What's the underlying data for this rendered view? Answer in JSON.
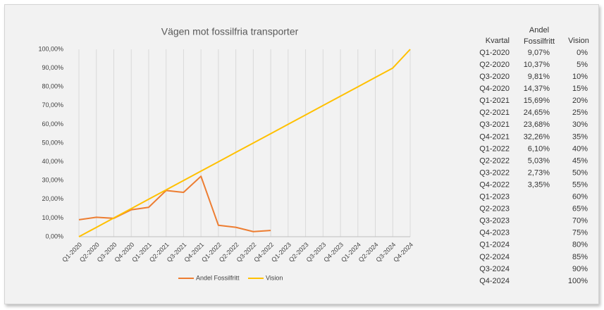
{
  "chart_data": {
    "type": "line",
    "title": "Vägen mot fossilfria transporter",
    "categories": [
      "Q1-2020",
      "Q2-2020",
      "Q3-2020",
      "Q4-2020",
      "Q1-2021",
      "Q2-2021",
      "Q3-2021",
      "Q4-2021",
      "Q1-2022",
      "Q2-2022",
      "Q3-2022",
      "Q4-2022",
      "Q1-2023",
      "Q2-2023",
      "Q3-2023",
      "Q4-2023",
      "Q1-2024",
      "Q2-2024",
      "Q3-2024",
      "Q4-2024"
    ],
    "series": [
      {
        "name": "Andel Fossilfritt",
        "color": "#ed7d31",
        "values": [
          9.07,
          10.37,
          9.81,
          14.37,
          15.69,
          24.65,
          23.68,
          32.26,
          6.1,
          5.03,
          2.73,
          3.35,
          null,
          null,
          null,
          null,
          null,
          null,
          null,
          null
        ],
        "value_labels": [
          "9,07%",
          "10,37%",
          "9,81%",
          "14,37%",
          "15,69%",
          "24,65%",
          "23,68%",
          "32,26%",
          "6,10%",
          "5,03%",
          "2,73%",
          "3,35%",
          null,
          null,
          null,
          null,
          null,
          null,
          null,
          null
        ]
      },
      {
        "name": "Vision",
        "color": "#ffc000",
        "values": [
          0,
          5,
          10,
          15,
          20,
          25,
          30,
          35,
          40,
          45,
          50,
          55,
          60,
          65,
          70,
          75,
          80,
          85,
          90,
          100
        ],
        "value_labels": [
          "0%",
          "5%",
          "10%",
          "15%",
          "20%",
          "25%",
          "30%",
          "35%",
          "40%",
          "45%",
          "50%",
          "55%",
          "60%",
          "65%",
          "70%",
          "75%",
          "80%",
          "85%",
          "90%",
          "100%"
        ]
      }
    ],
    "ylim": [
      0,
      100
    ],
    "yticks": [
      {
        "value": 0,
        "label": "0,00%"
      },
      {
        "value": 10,
        "label": "10,00%"
      },
      {
        "value": 20,
        "label": "20,00%"
      },
      {
        "value": 30,
        "label": "30,00%"
      },
      {
        "value": 40,
        "label": "40,00%"
      },
      {
        "value": 50,
        "label": "50,00%"
      },
      {
        "value": 60,
        "label": "60,00%"
      },
      {
        "value": 70,
        "label": "70,00%"
      },
      {
        "value": 80,
        "label": "80,00%"
      },
      {
        "value": 90,
        "label": "90,00%"
      },
      {
        "value": 100,
        "label": "100,00%"
      }
    ],
    "grid": true,
    "legend": "bottom",
    "table_header": "Kvartal"
  }
}
